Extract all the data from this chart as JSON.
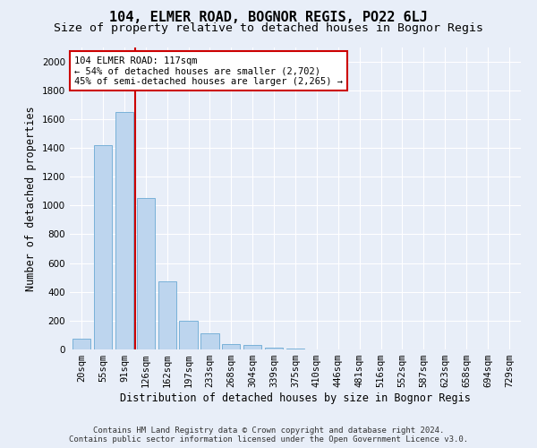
{
  "title": "104, ELMER ROAD, BOGNOR REGIS, PO22 6LJ",
  "subtitle": "Size of property relative to detached houses in Bognor Regis",
  "xlabel": "Distribution of detached houses by size in Bognor Regis",
  "ylabel": "Number of detached properties",
  "categories": [
    "20sqm",
    "55sqm",
    "91sqm",
    "126sqm",
    "162sqm",
    "197sqm",
    "233sqm",
    "268sqm",
    "304sqm",
    "339sqm",
    "375sqm",
    "410sqm",
    "446sqm",
    "481sqm",
    "516sqm",
    "552sqm",
    "587sqm",
    "623sqm",
    "658sqm",
    "694sqm",
    "729sqm"
  ],
  "values": [
    75,
    1420,
    1650,
    1050,
    470,
    200,
    110,
    40,
    30,
    10,
    5,
    0,
    0,
    0,
    0,
    0,
    0,
    0,
    0,
    0,
    0
  ],
  "bar_color": "#bdd5ee",
  "bar_edge_color": "#6aaad4",
  "vline_x": 2.5,
  "vline_color": "#cc0000",
  "annotation_title": "104 ELMER ROAD: 117sqm",
  "annotation_line1": "← 54% of detached houses are smaller (2,702)",
  "annotation_line2": "45% of semi-detached houses are larger (2,265) →",
  "annotation_box_facecolor": "#ffffff",
  "annotation_box_edgecolor": "#cc0000",
  "ylim": [
    0,
    2100
  ],
  "yticks": [
    0,
    200,
    400,
    600,
    800,
    1000,
    1200,
    1400,
    1600,
    1800,
    2000
  ],
  "background_color": "#e8eef8",
  "grid_color": "#ffffff",
  "title_fontsize": 11,
  "subtitle_fontsize": 9.5,
  "ylabel_fontsize": 8.5,
  "xlabel_fontsize": 8.5,
  "tick_fontsize": 7.5,
  "annotation_fontsize": 7.5,
  "footer_fontsize": 6.5,
  "footer_line1": "Contains HM Land Registry data © Crown copyright and database right 2024.",
  "footer_line2": "Contains public sector information licensed under the Open Government Licence v3.0."
}
